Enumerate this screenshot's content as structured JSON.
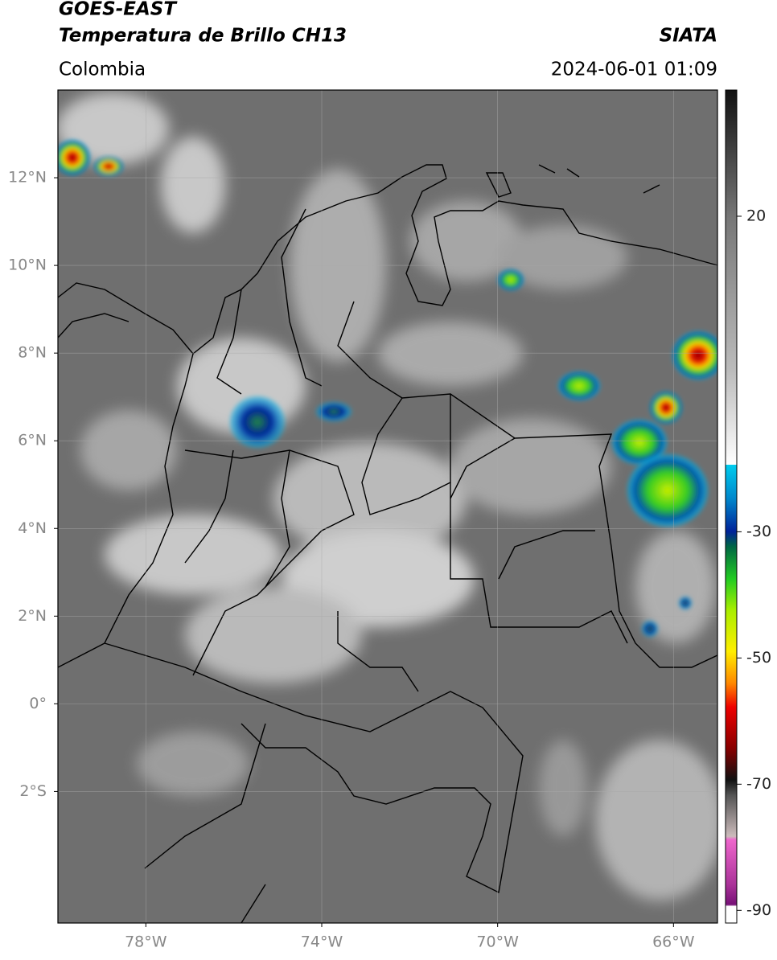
{
  "header": {
    "satellite": "GOES-EAST",
    "product": "Temperatura de Brillo CH13",
    "region": "Colombia",
    "source": "SIATA",
    "datetime": "2024-06-01 01:09"
  },
  "map": {
    "xlim": [
      -80,
      -65
    ],
    "ylim": [
      -5,
      14
    ],
    "xticks": [
      {
        "value": -78,
        "label": "78°W"
      },
      {
        "value": -74,
        "label": "74°W"
      },
      {
        "value": -70,
        "label": "70°W"
      },
      {
        "value": -66,
        "label": "66°W"
      }
    ],
    "yticks": [
      {
        "value": 12,
        "label": "12°N"
      },
      {
        "value": 10,
        "label": "10°N"
      },
      {
        "value": 8,
        "label": "8°N"
      },
      {
        "value": 6,
        "label": "6°N"
      },
      {
        "value": 4,
        "label": "4°N"
      },
      {
        "value": 2,
        "label": "2°N"
      },
      {
        "value": 0,
        "label": "0°"
      },
      {
        "value": -2,
        "label": "2°S"
      }
    ],
    "grid": true
  },
  "colorbar": {
    "lim": [
      -92,
      40
    ],
    "ticks": [
      20,
      -30,
      -50,
      -70,
      -90
    ]
  }
}
